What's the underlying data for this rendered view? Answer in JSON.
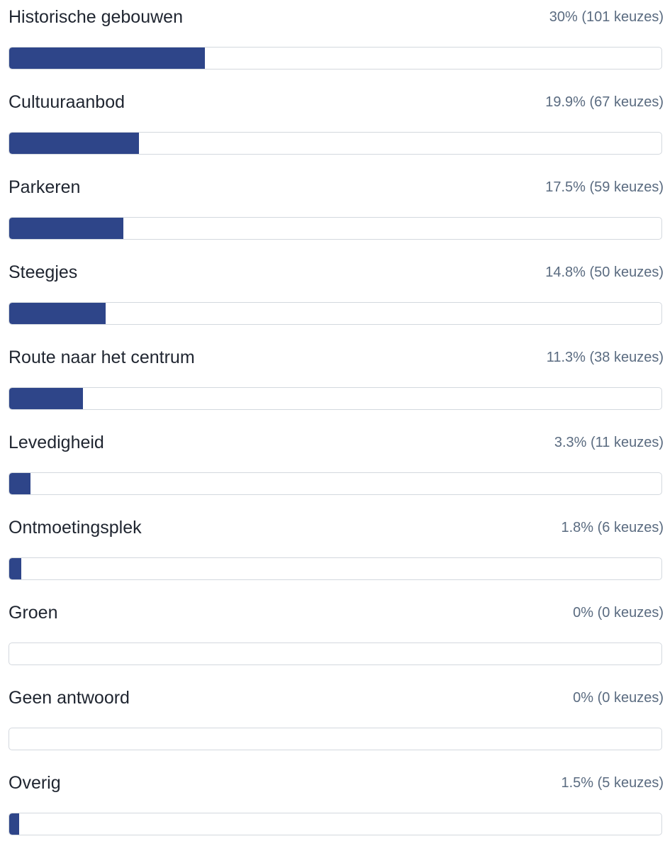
{
  "chart_data": {
    "type": "bar",
    "orientation": "horizontal",
    "xlim": [
      0,
      100
    ],
    "categories": [
      "Historische gebouwen",
      "Cultuuraanbod",
      "Parkeren",
      "Steegjes",
      "Route naar het centrum",
      "Levedigheid",
      "Ontmoetingsplek",
      "Groen",
      "Geen antwoord",
      "Overig"
    ],
    "values": [
      30,
      19.9,
      17.5,
      14.8,
      11.3,
      3.3,
      1.8,
      0,
      0,
      1.5
    ],
    "counts": [
      101,
      67,
      59,
      50,
      38,
      11,
      6,
      0,
      0,
      5
    ],
    "value_labels": [
      "30% (101 keuzes)",
      "19.9% (67 keuzes)",
      "17.5% (59 keuzes)",
      "14.8% (50 keuzes)",
      "11.3% (38 keuzes)",
      "3.3% (11 keuzes)",
      "1.8% (6 keuzes)",
      "0% (0 keuzes)",
      "0% (0 keuzes)",
      "1.5% (5 keuzes)"
    ],
    "colors": {
      "bar": "#2e4589",
      "track_border": "#d3d8de",
      "label": "#1f2530",
      "stats": "#5a6b80"
    }
  }
}
